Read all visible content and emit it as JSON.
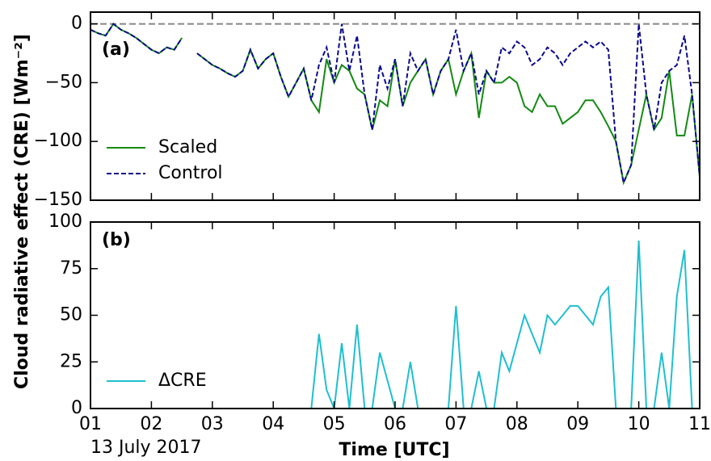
{
  "chart_data": [
    {
      "type": "line",
      "panel_label": "(a)",
      "ylabel": "Cloud radiative effect (CRE) [Wm⁻²]",
      "x": [
        1,
        1.125,
        1.25,
        1.375,
        1.5,
        1.625,
        1.75,
        1.875,
        2,
        2.125,
        2.25,
        2.375,
        2.5,
        2.625,
        2.75,
        2.875,
        3,
        3.125,
        3.25,
        3.375,
        3.5,
        3.625,
        3.75,
        3.875,
        4,
        4.125,
        4.25,
        4.375,
        4.5,
        4.625,
        4.75,
        4.875,
        5,
        5.125,
        5.25,
        5.375,
        5.5,
        5.625,
        5.75,
        5.875,
        6,
        6.125,
        6.25,
        6.375,
        6.5,
        6.625,
        6.75,
        6.875,
        7,
        7.125,
        7.25,
        7.375,
        7.5,
        7.625,
        7.75,
        7.875,
        8,
        8.125,
        8.25,
        8.375,
        8.5,
        8.625,
        8.75,
        8.875,
        9,
        9.125,
        9.25,
        9.375,
        9.5,
        9.625,
        9.75,
        9.875,
        10,
        10.125,
        10.25,
        10.375,
        10.5,
        10.625,
        10.75,
        10.875,
        11
      ],
      "series": [
        {
          "name": "Scaled",
          "color": "#138a13",
          "dash": false,
          "values": [
            -5,
            -8,
            -10,
            0,
            -5,
            -8,
            -12,
            -17,
            -22,
            -25,
            -20,
            -22,
            -12,
            null,
            -25,
            -30,
            -35,
            -38,
            -42,
            -45,
            -40,
            -22,
            -38,
            -30,
            -25,
            -45,
            -62,
            -50,
            -38,
            -65,
            -75,
            -30,
            -50,
            -35,
            -40,
            -55,
            -60,
            -90,
            -65,
            -70,
            -30,
            -70,
            -50,
            -40,
            -30,
            -60,
            -40,
            -30,
            -60,
            -40,
            -25,
            -80,
            -40,
            -50,
            -50,
            -45,
            -50,
            -70,
            -75,
            -60,
            -70,
            -70,
            -85,
            -80,
            -75,
            -65,
            -65,
            -75,
            -87,
            -100,
            -135,
            -120,
            -90,
            -60,
            -90,
            -80,
            -40,
            -95,
            -95,
            -60,
            -130
          ]
        },
        {
          "name": "Control",
          "color": "#0a0a8c",
          "dash": true,
          "values": [
            -5,
            -8,
            -10,
            0,
            -5,
            -8,
            -12,
            -17,
            -22,
            -25,
            -20,
            -22,
            -12,
            null,
            -25,
            -30,
            -35,
            -38,
            -42,
            -45,
            -40,
            -22,
            -38,
            -30,
            -25,
            -45,
            -62,
            -50,
            -38,
            -65,
            -35,
            -20,
            -50,
            0,
            -40,
            -10,
            -60,
            -90,
            -35,
            -55,
            -30,
            -70,
            -25,
            -40,
            -30,
            -60,
            -40,
            -30,
            -5,
            -40,
            -25,
            -60,
            -40,
            -50,
            -20,
            -25,
            -15,
            -20,
            -35,
            -30,
            -20,
            -25,
            -35,
            -25,
            -20,
            -15,
            -20,
            -15,
            -22,
            -100,
            -135,
            -120,
            0,
            -60,
            -90,
            -50,
            -40,
            -35,
            -10,
            -60,
            -130
          ]
        }
      ],
      "reference_line": 0,
      "xlim": [
        1,
        11
      ],
      "ylim": [
        -150,
        10
      ],
      "yticks": [
        {
          "value": -150,
          "label": "−150"
        },
        {
          "value": -100,
          "label": "−100"
        },
        {
          "value": -50,
          "label": "−50"
        },
        0
      ]
    },
    {
      "type": "line",
      "panel_label": "(b)",
      "xlabel": "Time [UTC]",
      "date_label": "13 July 2017",
      "x": [
        1,
        1.125,
        1.25,
        1.375,
        1.5,
        1.625,
        1.75,
        1.875,
        2,
        2.125,
        2.25,
        2.375,
        2.5,
        2.625,
        2.75,
        2.875,
        3,
        3.125,
        3.25,
        3.375,
        3.5,
        3.625,
        3.75,
        3.875,
        4,
        4.125,
        4.25,
        4.375,
        4.5,
        4.625,
        4.75,
        4.875,
        5,
        5.125,
        5.25,
        5.375,
        5.5,
        5.625,
        5.75,
        5.875,
        6,
        6.125,
        6.25,
        6.375,
        6.5,
        6.625,
        6.75,
        6.875,
        7,
        7.125,
        7.25,
        7.375,
        7.5,
        7.625,
        7.75,
        7.875,
        8,
        8.125,
        8.25,
        8.375,
        8.5,
        8.625,
        8.75,
        8.875,
        9,
        9.125,
        9.25,
        9.375,
        9.5,
        9.625,
        9.75,
        9.875,
        10,
        10.125,
        10.25,
        10.375,
        10.5,
        10.625,
        10.75,
        10.875,
        11
      ],
      "series": [
        {
          "name": "ΔCRE",
          "color": "#1fbfcf",
          "dash": false,
          "values": [
            0,
            0,
            0,
            0,
            0,
            0,
            0,
            0,
            0,
            0,
            0,
            0,
            0,
            0,
            0,
            0,
            0,
            0,
            0,
            0,
            0,
            0,
            0,
            0,
            0,
            0,
            0,
            0,
            0,
            0,
            40,
            10,
            0,
            35,
            0,
            45,
            0,
            0,
            30,
            15,
            0,
            0,
            25,
            0,
            0,
            0,
            0,
            0,
            55,
            0,
            0,
            20,
            0,
            0,
            30,
            20,
            35,
            50,
            40,
            30,
            50,
            45,
            50,
            55,
            55,
            50,
            45,
            60,
            65,
            0,
            0,
            0,
            90,
            0,
            0,
            30,
            0,
            60,
            85,
            0,
            0
          ]
        }
      ],
      "xlim": [
        1,
        11
      ],
      "ylim": [
        0,
        100
      ],
      "xticks": [
        {
          "value": 1,
          "label": "01"
        },
        {
          "value": 2,
          "label": "02"
        },
        {
          "value": 3,
          "label": "03"
        },
        {
          "value": 4,
          "label": "04"
        },
        {
          "value": 5,
          "label": "05"
        },
        {
          "value": 6,
          "label": "06"
        },
        {
          "value": 7,
          "label": "07"
        },
        {
          "value": 8,
          "label": "08"
        },
        {
          "value": 9,
          "label": "09"
        },
        {
          "value": 10,
          "label": "10"
        },
        {
          "value": 11,
          "label": "11"
        }
      ],
      "yticks": [
        0,
        25,
        50,
        75,
        100
      ]
    }
  ]
}
